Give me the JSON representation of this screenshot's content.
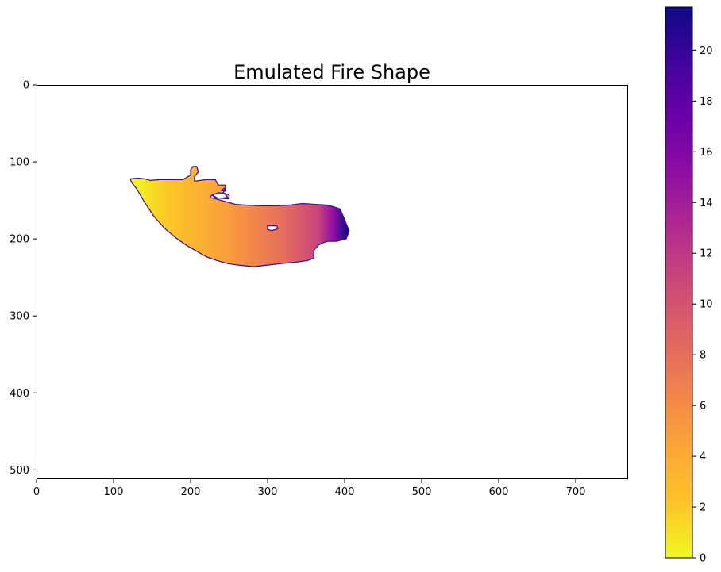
{
  "chart_data": {
    "type": "heatmap",
    "title": "Emulated Fire Shape",
    "xlabel": "",
    "ylabel": "",
    "xlim": [
      0,
      768
    ],
    "ylim": [
      512,
      0
    ],
    "x_ticks": [
      "0",
      "100",
      "200",
      "300",
      "400",
      "500",
      "600",
      "700"
    ],
    "y_ticks": [
      "0",
      "100",
      "200",
      "300",
      "400",
      "500"
    ],
    "colorbar": {
      "colormap": "plasma_r",
      "range": [
        0,
        21.7
      ],
      "ticks": [
        "0",
        "2",
        "4",
        "6",
        "8",
        "10",
        "12",
        "14",
        "16",
        "18",
        "20"
      ]
    },
    "grid": false,
    "shape_outline": [
      [
        122,
        122
      ],
      [
        132,
        121
      ],
      [
        140,
        122
      ],
      [
        148,
        124
      ],
      [
        160,
        123
      ],
      [
        175,
        123
      ],
      [
        190,
        123
      ],
      [
        200,
        117
      ],
      [
        200,
        110
      ],
      [
        203,
        106
      ],
      [
        208,
        106
      ],
      [
        210,
        113
      ],
      [
        205,
        119
      ],
      [
        205,
        125
      ],
      [
        220,
        123
      ],
      [
        232,
        123
      ],
      [
        236,
        130
      ],
      [
        246,
        130
      ],
      [
        244,
        137
      ],
      [
        242,
        140
      ],
      [
        250,
        143
      ],
      [
        250,
        148
      ],
      [
        235,
        147
      ],
      [
        228,
        143
      ],
      [
        225,
        146
      ],
      [
        240,
        150
      ],
      [
        258,
        155
      ],
      [
        270,
        156
      ],
      [
        290,
        157
      ],
      [
        310,
        157
      ],
      [
        330,
        156
      ],
      [
        345,
        154
      ],
      [
        360,
        155
      ],
      [
        375,
        156
      ],
      [
        385,
        158
      ],
      [
        394,
        161
      ],
      [
        398,
        170
      ],
      [
        402,
        180
      ],
      [
        406,
        190
      ],
      [
        402,
        200
      ],
      [
        390,
        203
      ],
      [
        378,
        203
      ],
      [
        372,
        205
      ],
      [
        366,
        208
      ],
      [
        360,
        215
      ],
      [
        360,
        225
      ],
      [
        352,
        228
      ],
      [
        338,
        230
      ],
      [
        318,
        232
      ],
      [
        300,
        234
      ],
      [
        282,
        236
      ],
      [
        262,
        234
      ],
      [
        248,
        232
      ],
      [
        234,
        228
      ],
      [
        220,
        223
      ],
      [
        208,
        216
      ],
      [
        194,
        208
      ],
      [
        180,
        198
      ],
      [
        166,
        186
      ],
      [
        152,
        170
      ],
      [
        140,
        152
      ],
      [
        130,
        135
      ],
      [
        123,
        126
      ]
    ],
    "holes": [
      [
        [
          300,
          183
        ],
        [
          312,
          183
        ],
        [
          313,
          187
        ],
        [
          306,
          189
        ],
        [
          300,
          188
        ]
      ],
      [
        [
          228,
          143
        ],
        [
          236,
          140
        ],
        [
          244,
          141
        ],
        [
          248,
          146
        ],
        [
          240,
          147
        ],
        [
          232,
          147
        ]
      ],
      [
        [
          240,
          137
        ],
        [
          244,
          134
        ],
        [
          246,
          138
        ]
      ]
    ],
    "gradient_stops": [
      [
        125,
        125,
        0
      ],
      [
        170,
        160,
        2
      ],
      [
        250,
        190,
        5
      ],
      [
        320,
        185,
        8
      ],
      [
        365,
        180,
        11
      ],
      [
        385,
        185,
        15
      ],
      [
        405,
        190,
        21.7
      ]
    ]
  }
}
